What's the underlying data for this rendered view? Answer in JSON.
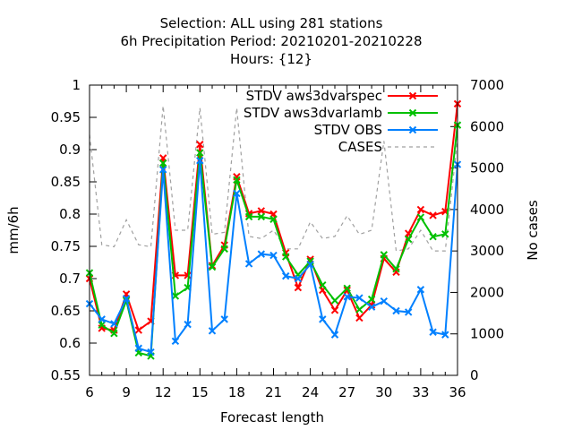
{
  "chart_data": {
    "type": "line",
    "title": [
      "Selection: ALL using   281 stations",
      "6h Precipitation   Period: 20210201-20210228",
      "Hours: {12}"
    ],
    "xlabel": "Forecast length",
    "ylabel": "mm/6h",
    "y2label": "No cases",
    "xlim": [
      6,
      36
    ],
    "ylim": [
      0.55,
      1.0
    ],
    "y2lim": [
      0,
      7000
    ],
    "xticks": [
      6,
      9,
      12,
      15,
      18,
      21,
      24,
      27,
      30,
      33,
      36
    ],
    "yticks": [
      0.55,
      0.6,
      0.65,
      0.7,
      0.75,
      0.8,
      0.85,
      0.9,
      0.95,
      1.0
    ],
    "yticklabels": [
      "0.55",
      "0.6",
      "0.65",
      "0.7",
      "0.75",
      "0.8",
      "0.85",
      "0.9",
      "0.95",
      "1"
    ],
    "y2ticks": [
      0,
      1000,
      2000,
      3000,
      4000,
      5000,
      6000,
      7000
    ],
    "legend_position": "top-right",
    "x": [
      6,
      7,
      8,
      9,
      10,
      11,
      12,
      13,
      14,
      15,
      16,
      17,
      18,
      19,
      20,
      21,
      22,
      23,
      24,
      25,
      26,
      27,
      28,
      29,
      30,
      31,
      32,
      33,
      34,
      35,
      36
    ],
    "series": [
      {
        "name": "STDV aws3dvarspec",
        "color": "#ff0000",
        "marker": "x",
        "axis": "y1",
        "values": [
          0.7,
          0.623,
          0.62,
          0.676,
          0.62,
          0.634,
          0.887,
          0.705,
          0.705,
          0.908,
          0.72,
          0.752,
          0.858,
          0.801,
          0.805,
          0.8,
          0.74,
          0.686,
          0.73,
          0.682,
          0.651,
          0.682,
          0.639,
          0.659,
          0.731,
          0.71,
          0.77,
          0.807,
          0.798,
          0.804,
          0.971
        ]
      },
      {
        "name": "STDV aws3dvarlamb",
        "color": "#00c000",
        "marker": "x",
        "axis": "y1",
        "values": [
          0.709,
          0.628,
          0.615,
          0.666,
          0.585,
          0.58,
          0.879,
          0.673,
          0.686,
          0.895,
          0.718,
          0.746,
          0.853,
          0.796,
          0.796,
          0.792,
          0.734,
          0.706,
          0.727,
          0.69,
          0.666,
          0.685,
          0.652,
          0.668,
          0.737,
          0.715,
          0.761,
          0.795,
          0.765,
          0.769,
          0.938
        ]
      },
      {
        "name": "STDV OBS",
        "color": "#0080ff",
        "marker": "x",
        "axis": "y1",
        "values": [
          0.661,
          0.637,
          0.63,
          0.669,
          0.592,
          0.586,
          0.869,
          0.603,
          0.629,
          0.883,
          0.619,
          0.637,
          0.832,
          0.723,
          0.738,
          0.736,
          0.704,
          0.7,
          0.722,
          0.637,
          0.613,
          0.672,
          0.67,
          0.656,
          0.665,
          0.65,
          0.648,
          0.683,
          0.617,
          0.613,
          0.877
        ]
      },
      {
        "name": "CASES",
        "color": "#a0a0a0",
        "dashed": true,
        "axis": "y2",
        "values": [
          5800,
          3150,
          3100,
          3750,
          3150,
          3100,
          6500,
          3500,
          3500,
          6450,
          3400,
          3450,
          6450,
          3350,
          3300,
          3500,
          3050,
          3050,
          3700,
          3300,
          3350,
          3850,
          3400,
          3500,
          5650,
          3000,
          3050,
          3500,
          3000,
          3000,
          5700
        ]
      }
    ]
  }
}
